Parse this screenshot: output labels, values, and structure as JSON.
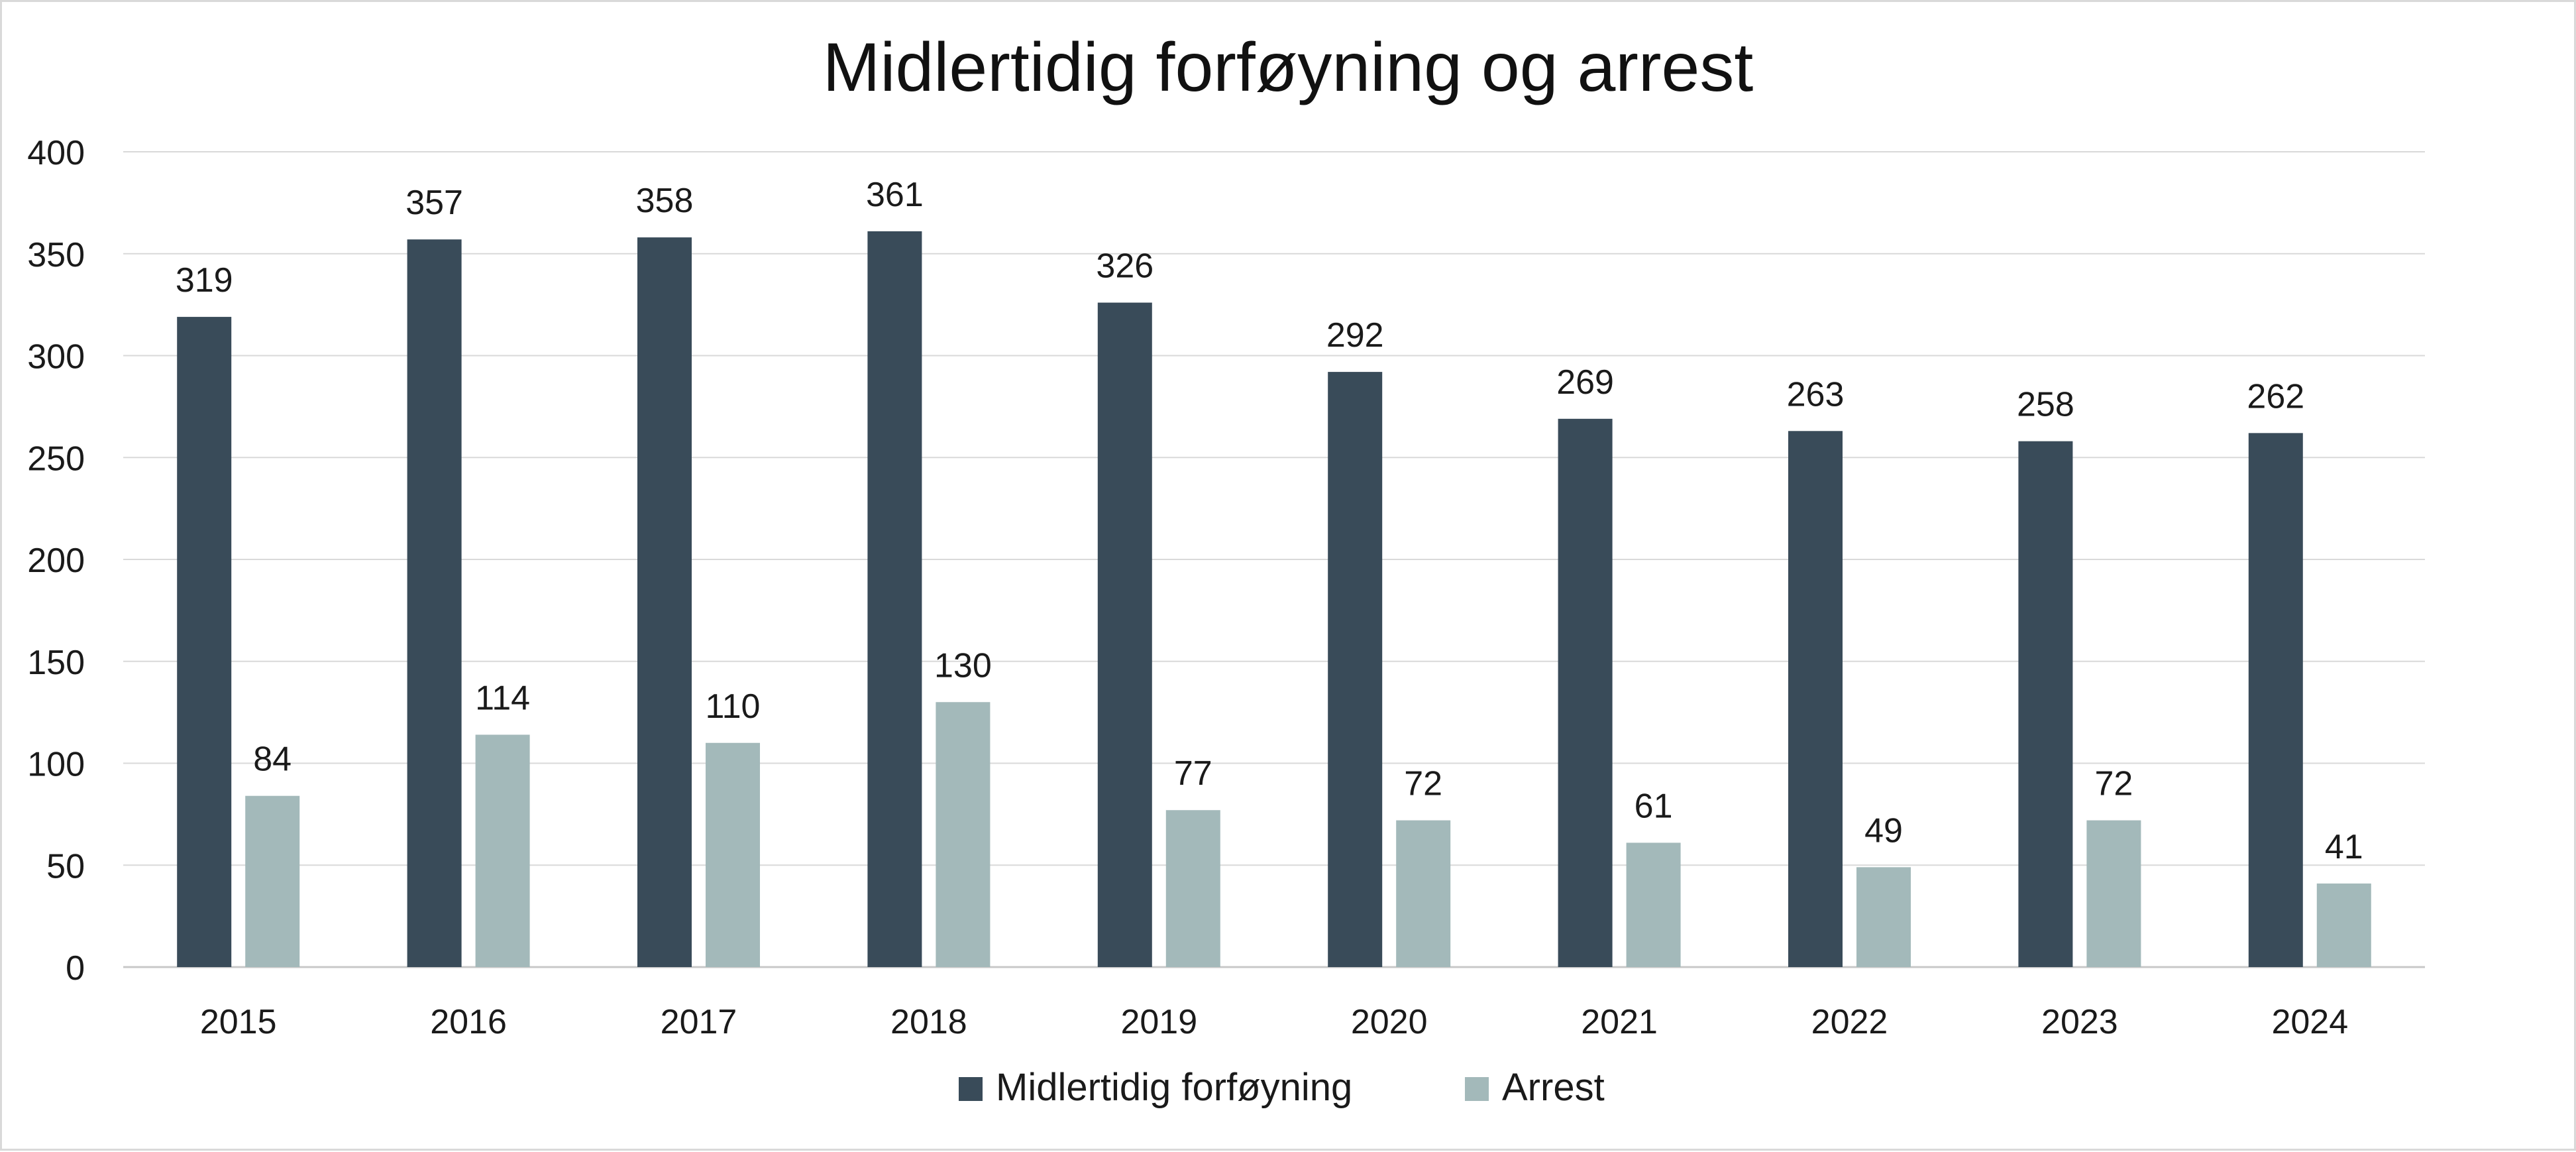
{
  "chart_data": {
    "type": "bar",
    "title": "Midlertidig forføyning og arrest",
    "xlabel": "",
    "ylabel": "",
    "categories": [
      "2015",
      "2016",
      "2017",
      "2018",
      "2019",
      "2020",
      "2021",
      "2022",
      "2023",
      "2024"
    ],
    "series": [
      {
        "name": "Midlertidig forføyning",
        "color": "#394b59",
        "values": [
          319,
          357,
          358,
          361,
          326,
          292,
          269,
          263,
          258,
          262
        ]
      },
      {
        "name": "Arrest",
        "color": "#a3b9ba",
        "values": [
          84,
          114,
          110,
          130,
          77,
          72,
          61,
          49,
          72,
          41
        ]
      }
    ],
    "ylim": [
      0,
      400
    ],
    "yticks": [
      "0",
      "50",
      "100",
      "150",
      "200",
      "250",
      "300",
      "350",
      "400"
    ],
    "grid": true,
    "legend": "bottom-center"
  }
}
